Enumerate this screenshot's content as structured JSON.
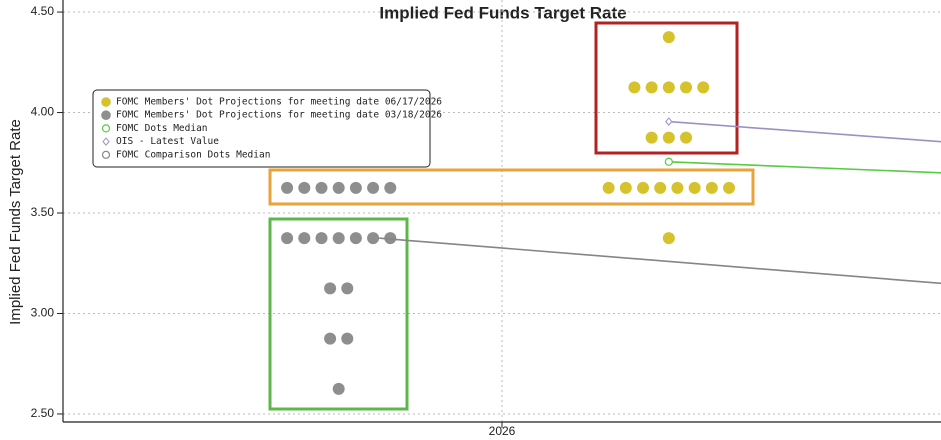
{
  "chart_data": {
    "type": "scatter",
    "title": "Implied Fed Funds Target Rate",
    "ylabel": "Implied Fed Funds Target Rate",
    "xlim": [
      2025.5,
      2026.5
    ],
    "xticks": [
      2026
    ],
    "ylim": [
      2.46,
      4.56
    ],
    "yticks": [
      {
        "value": 2.5,
        "label": "2.50"
      },
      {
        "value": 3.0,
        "label": "3.00"
      },
      {
        "value": 3.5,
        "label": "3.50"
      },
      {
        "value": 4.0,
        "label": "4.00"
      },
      {
        "value": 4.5,
        "label": "4.50"
      }
    ],
    "grid": true,
    "legend": "upper left",
    "series": [
      {
        "name": "FOMC Members' Dot Projections for meeting date 06/17/2026",
        "type": "dots",
        "marker": "dot",
        "color": "#d6c22b",
        "x": 2026.19,
        "values": [
          4.375,
          4.125,
          4.125,
          4.125,
          4.125,
          4.125,
          3.875,
          3.875,
          3.875,
          3.625,
          3.625,
          3.625,
          3.625,
          3.625,
          3.625,
          3.625,
          3.625,
          3.375
        ]
      },
      {
        "name": "FOMC Members' Dot Projections for meeting date 03/18/2026",
        "type": "dots",
        "marker": "dot",
        "color": "#8e8e8e",
        "x": 2025.814,
        "values": [
          3.625,
          3.625,
          3.625,
          3.625,
          3.625,
          3.625,
          3.625,
          3.375,
          3.375,
          3.375,
          3.375,
          3.375,
          3.375,
          3.375,
          3.125,
          3.125,
          2.875,
          2.875,
          2.625
        ]
      },
      {
        "name": "FOMC Dots Median",
        "type": "line",
        "marker": "open-circle",
        "color": "#55cc44",
        "x": [
          2026.19,
          2026.5
        ],
        "values": [
          3.755,
          3.7
        ]
      },
      {
        "name": "OIS - Latest Value",
        "type": "line",
        "marker": "diamond",
        "color": "#9d90c4",
        "x": [
          2026.19,
          2026.5
        ],
        "values": [
          3.955,
          3.855
        ]
      },
      {
        "name": "FOMC Comparison Dots Median",
        "type": "line",
        "marker": "none",
        "color": "#858585",
        "x": [
          2025.86,
          2026.5
        ],
        "values": [
          3.375,
          3.15
        ]
      }
    ]
  }
}
